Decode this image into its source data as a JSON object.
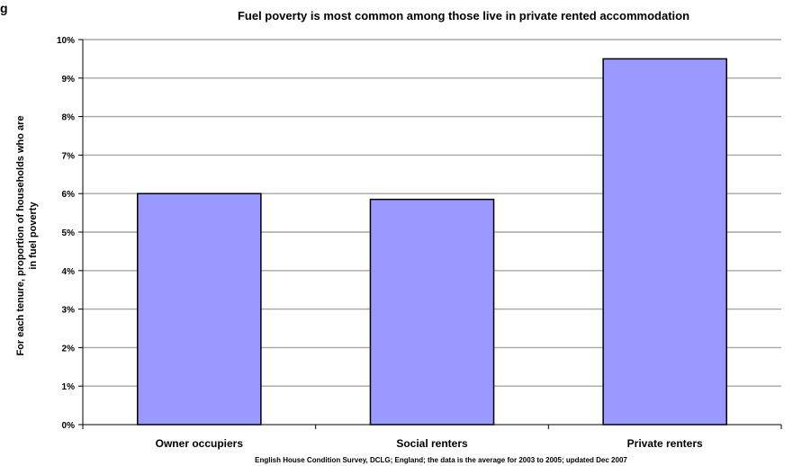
{
  "corner_fragment": "g",
  "chart_data": {
    "type": "bar",
    "title": "Fuel poverty is most common among those live in private rented accommodation",
    "ylabel_lines": [
      "For each tenure, proportion of households who are",
      "in fuel poverty"
    ],
    "xlabel": "",
    "categories": [
      "Owner occupiers",
      "Social renters",
      "Private renters"
    ],
    "values": [
      6.0,
      5.85,
      9.5
    ],
    "ylim": [
      0,
      10
    ],
    "yticks": [
      0,
      1,
      2,
      3,
      4,
      5,
      6,
      7,
      8,
      9,
      10
    ],
    "ytick_labels": [
      "0%",
      "1%",
      "2%",
      "3%",
      "4%",
      "5%",
      "6%",
      "7%",
      "8%",
      "9%",
      "10%"
    ],
    "grid": true,
    "bar_color": "#9999ff",
    "bar_edge_color": "#000000",
    "source": "English House Condition Survey, DCLG; England; the data is the average for 2003 to 2005; updated Dec 2007"
  }
}
